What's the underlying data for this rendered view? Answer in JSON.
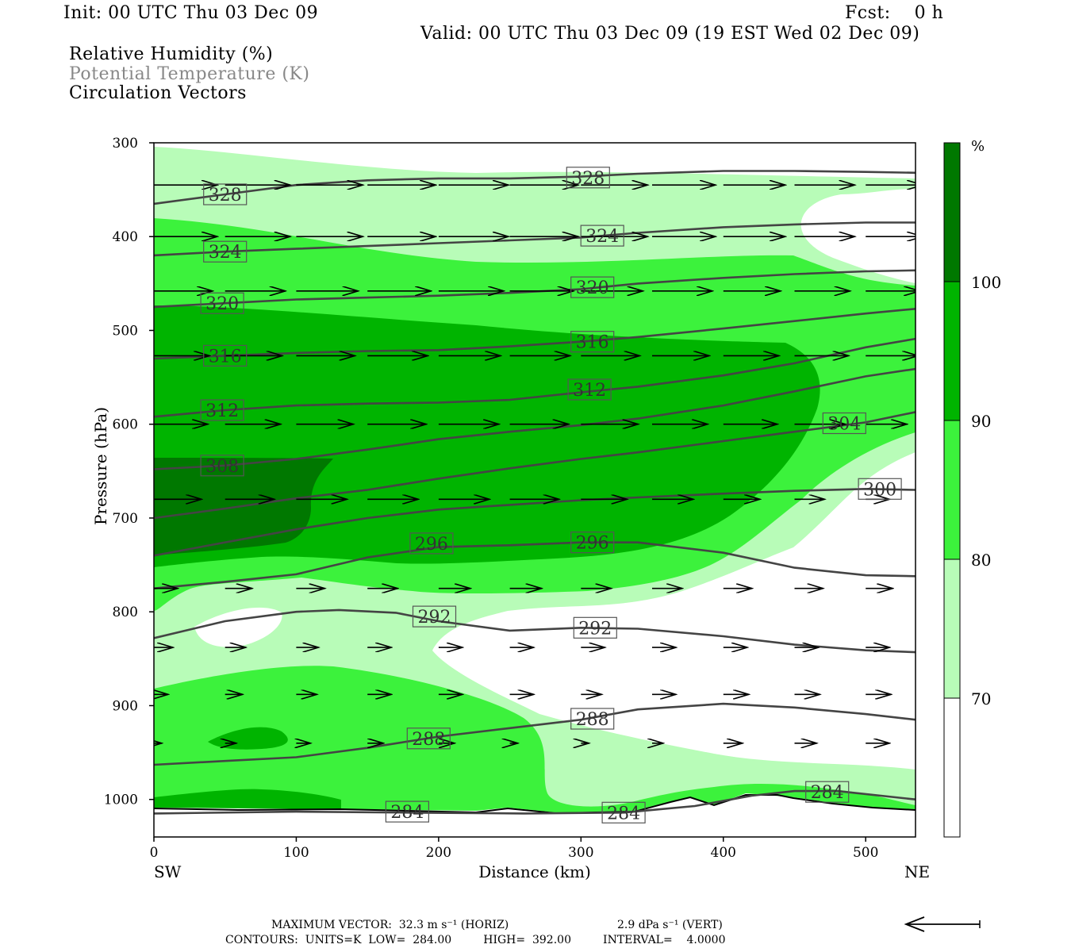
{
  "header": {
    "init": "Init: 00 UTC Thu 03 Dec 09",
    "fcst": "Fcst:    0 h",
    "valid": "Valid: 00 UTC Thu 03 Dec 09 (19 EST Wed 02 Dec 09)",
    "field1": "Relative Humidity (%)",
    "field2": "Potential Temperature (K)",
    "field3": "Circulation Vectors"
  },
  "colors": {
    "rh_70_80": "#b8fcb8",
    "rh_80_90": "#3cf23c",
    "rh_90_100": "#00b400",
    "rh_100_plus": "#007800",
    "theta_line": "#444444",
    "vector": "#000000"
  },
  "chart_data": {
    "type": "contour",
    "xlabel": "Distance (km)",
    "ylabel": "Pressure (hPa)",
    "xlim": [
      0,
      535
    ],
    "ylim": [
      1040,
      300
    ],
    "x_ticks": [
      0,
      100,
      200,
      300,
      400,
      500
    ],
    "y_ticks": [
      300,
      400,
      500,
      600,
      700,
      800,
      900,
      1000
    ],
    "x_end_labels": {
      "left": "SW",
      "right": "NE"
    },
    "colorbar": {
      "unit": "%",
      "levels": [
        70,
        80,
        90,
        100
      ],
      "colors": [
        "#ffffff",
        "#b8fcb8",
        "#3cf23c",
        "#00b400",
        "#007800"
      ]
    },
    "theta_contour_labels": [
      {
        "x": 50,
        "p": 355,
        "value": "328"
      },
      {
        "x": 305,
        "p": 337,
        "value": "328"
      },
      {
        "x": 50,
        "p": 416,
        "value": "324"
      },
      {
        "x": 315,
        "p": 399,
        "value": "324"
      },
      {
        "x": 48,
        "p": 471,
        "value": "320"
      },
      {
        "x": 308,
        "p": 454,
        "value": "320"
      },
      {
        "x": 50,
        "p": 527,
        "value": "316"
      },
      {
        "x": 308,
        "p": 512,
        "value": "316"
      },
      {
        "x": 48,
        "p": 585,
        "value": "312"
      },
      {
        "x": 306,
        "p": 563,
        "value": "312"
      },
      {
        "x": 48,
        "p": 644,
        "value": "308"
      },
      {
        "x": 485,
        "p": 599,
        "value": "304"
      },
      {
        "x": 510,
        "p": 669,
        "value": "300"
      },
      {
        "x": 195,
        "p": 727,
        "value": "296"
      },
      {
        "x": 308,
        "p": 726,
        "value": "296"
      },
      {
        "x": 197,
        "p": 805,
        "value": "292"
      },
      {
        "x": 310,
        "p": 817,
        "value": "292"
      },
      {
        "x": 193,
        "p": 935,
        "value": "288"
      },
      {
        "x": 308,
        "p": 914,
        "value": "288"
      },
      {
        "x": 178,
        "p": 1013,
        "value": "284"
      },
      {
        "x": 330,
        "p": 1014,
        "value": "284"
      },
      {
        "x": 473,
        "p": 992,
        "value": "284"
      }
    ],
    "theta_contours": [
      {
        "value": 328,
        "points": [
          [
            0,
            365
          ],
          [
            50,
            355
          ],
          [
            100,
            345
          ],
          [
            150,
            340
          ],
          [
            200,
            338
          ],
          [
            250,
            338
          ],
          [
            300,
            336
          ],
          [
            340,
            333
          ],
          [
            400,
            330
          ],
          [
            450,
            330
          ],
          [
            500,
            331
          ],
          [
            535,
            332
          ]
        ]
      },
      {
        "value": 324,
        "points": [
          [
            0,
            420
          ],
          [
            50,
            416
          ],
          [
            100,
            413
          ],
          [
            150,
            410
          ],
          [
            200,
            407
          ],
          [
            250,
            404
          ],
          [
            300,
            401
          ],
          [
            340,
            396
          ],
          [
            400,
            390
          ],
          [
            450,
            387
          ],
          [
            500,
            385
          ],
          [
            535,
            385
          ]
        ]
      },
      {
        "value": 320,
        "points": [
          [
            0,
            475
          ],
          [
            50,
            471
          ],
          [
            100,
            467
          ],
          [
            150,
            465
          ],
          [
            200,
            463
          ],
          [
            250,
            460
          ],
          [
            300,
            456
          ],
          [
            340,
            450
          ],
          [
            400,
            444
          ],
          [
            450,
            440
          ],
          [
            500,
            437
          ],
          [
            535,
            436
          ]
        ]
      },
      {
        "value": 316,
        "points": [
          [
            0,
            530
          ],
          [
            50,
            527
          ],
          [
            100,
            524
          ],
          [
            150,
            522
          ],
          [
            200,
            521
          ],
          [
            250,
            517
          ],
          [
            300,
            512
          ],
          [
            340,
            507
          ],
          [
            400,
            498
          ],
          [
            450,
            490
          ],
          [
            500,
            482
          ],
          [
            535,
            477
          ]
        ]
      },
      {
        "value": 312,
        "points": [
          [
            0,
            592
          ],
          [
            50,
            585
          ],
          [
            100,
            580
          ],
          [
            150,
            578
          ],
          [
            200,
            577
          ],
          [
            250,
            574
          ],
          [
            300,
            566
          ],
          [
            340,
            560
          ],
          [
            400,
            548
          ],
          [
            450,
            535
          ],
          [
            500,
            518
          ],
          [
            535,
            509
          ]
        ]
      },
      {
        "value": 308,
        "points": [
          [
            0,
            648
          ],
          [
            50,
            644
          ],
          [
            100,
            637
          ],
          [
            150,
            627
          ],
          [
            200,
            616
          ],
          [
            250,
            608
          ],
          [
            300,
            601
          ],
          [
            340,
            594
          ],
          [
            400,
            580
          ],
          [
            450,
            565
          ],
          [
            500,
            549
          ],
          [
            535,
            541
          ]
        ]
      },
      {
        "value": 304,
        "points": [
          [
            0,
            700
          ],
          [
            50,
            690
          ],
          [
            100,
            679
          ],
          [
            150,
            670
          ],
          [
            200,
            658
          ],
          [
            250,
            647
          ],
          [
            300,
            637
          ],
          [
            340,
            630
          ],
          [
            400,
            618
          ],
          [
            450,
            608
          ],
          [
            500,
            598
          ],
          [
            535,
            587
          ]
        ]
      },
      {
        "value": 300,
        "points": [
          [
            0,
            740
          ],
          [
            50,
            726
          ],
          [
            100,
            712
          ],
          [
            150,
            700
          ],
          [
            200,
            691
          ],
          [
            250,
            686
          ],
          [
            300,
            681
          ],
          [
            340,
            678
          ],
          [
            400,
            674
          ],
          [
            450,
            671
          ],
          [
            500,
            669
          ],
          [
            535,
            670
          ]
        ]
      },
      {
        "value": 296,
        "points": [
          [
            0,
            775
          ],
          [
            50,
            768
          ],
          [
            100,
            760
          ],
          [
            150,
            742
          ],
          [
            200,
            731
          ],
          [
            250,
            729
          ],
          [
            300,
            726
          ],
          [
            340,
            726
          ],
          [
            400,
            737
          ],
          [
            450,
            753
          ],
          [
            500,
            761
          ],
          [
            535,
            762
          ]
        ]
      },
      {
        "value": 292,
        "points": [
          [
            0,
            828
          ],
          [
            50,
            810
          ],
          [
            100,
            800
          ],
          [
            130,
            798
          ],
          [
            170,
            801
          ],
          [
            200,
            810
          ],
          [
            250,
            820
          ],
          [
            300,
            817
          ],
          [
            340,
            818
          ],
          [
            400,
            826
          ],
          [
            450,
            835
          ],
          [
            500,
            841
          ],
          [
            535,
            843
          ]
        ]
      },
      {
        "value": 288,
        "points": [
          [
            0,
            963
          ],
          [
            50,
            959
          ],
          [
            100,
            955
          ],
          [
            150,
            945
          ],
          [
            200,
            933
          ],
          [
            250,
            924
          ],
          [
            300,
            915
          ],
          [
            340,
            904
          ],
          [
            400,
            898
          ],
          [
            450,
            902
          ],
          [
            500,
            909
          ],
          [
            535,
            915
          ]
        ]
      },
      {
        "value": 284,
        "points": [
          [
            0,
            1015
          ],
          [
            100,
            1013
          ],
          [
            178,
            1014
          ],
          [
            260,
            1015
          ],
          [
            330,
            1014
          ],
          [
            380,
            1007
          ],
          [
            420,
            996
          ],
          [
            450,
            991
          ],
          [
            480,
            991
          ],
          [
            535,
            1000
          ]
        ]
      }
    ],
    "circulation_vector_rows": [
      {
        "p": 345,
        "x": [
          0,
          50,
          100,
          150,
          200,
          250,
          300,
          350,
          400,
          450,
          500
        ],
        "len": [
          80,
          82,
          84,
          86,
          88,
          86,
          84,
          80,
          78,
          76,
          72
        ]
      },
      {
        "p": 400,
        "x": [
          0,
          50,
          100,
          150,
          200,
          250,
          300,
          350,
          400,
          450,
          500
        ],
        "len": [
          80,
          82,
          84,
          86,
          88,
          86,
          84,
          80,
          78,
          76,
          72
        ]
      },
      {
        "p": 458,
        "x": [
          0,
          50,
          100,
          150,
          200,
          250,
          300,
          350,
          400,
          450,
          500
        ],
        "len": [
          74,
          76,
          78,
          80,
          82,
          80,
          78,
          76,
          72,
          70,
          68
        ]
      },
      {
        "p": 527,
        "x": [
          0,
          50,
          100,
          150,
          200,
          250,
          300,
          350,
          400,
          450,
          500
        ],
        "len": [
          70,
          72,
          74,
          76,
          78,
          76,
          74,
          72,
          70,
          68,
          66
        ]
      },
      {
        "p": 600,
        "x": [
          0,
          50,
          100,
          150,
          200,
          250,
          300,
          350,
          400,
          450,
          500
        ],
        "len": [
          68,
          70,
          72,
          74,
          76,
          74,
          72,
          70,
          68,
          64,
          52
        ]
      },
      {
        "p": 680,
        "x": [
          0,
          50,
          100,
          150,
          200,
          250,
          300,
          350,
          400,
          450,
          500
        ],
        "len": [
          60,
          62,
          64,
          64,
          64,
          62,
          58,
          52,
          46,
          38,
          30
        ]
      },
      {
        "p": 775,
        "x": [
          0,
          50,
          100,
          150,
          200,
          250,
          300,
          350,
          400,
          450,
          500
        ],
        "len": [
          30,
          34,
          36,
          38,
          40,
          40,
          38,
          38,
          36,
          36,
          34
        ]
      },
      {
        "p": 838,
        "x": [
          0,
          50,
          100,
          150,
          200,
          250,
          300,
          350,
          400,
          450,
          500
        ],
        "len": [
          24,
          26,
          28,
          30,
          30,
          30,
          30,
          30,
          30,
          30,
          30
        ]
      },
      {
        "p": 888,
        "x": [
          0,
          50,
          100,
          150,
          200,
          250,
          300,
          350,
          400,
          450,
          500
        ],
        "len": [
          18,
          22,
          26,
          30,
          30,
          30,
          26,
          30,
          32,
          32,
          32
        ]
      },
      {
        "p": 940,
        "x": [
          0,
          50,
          100,
          150,
          200,
          250,
          300,
          350,
          400,
          450,
          500
        ],
        "len": [
          10,
          14,
          18,
          20,
          20,
          10,
          10,
          14,
          24,
          28,
          30
        ]
      }
    ],
    "max_vector": "MAXIMUM VECTOR:  32.3 m s⁻¹ (HORIZ)",
    "max_vector_vert": "2.9 dPa s⁻¹ (VERT)",
    "contours_line": "CONTOURS:  UNITS=K  LOW=  284.00         HIGH=  392.00         INTERVAL=    4.0000"
  }
}
